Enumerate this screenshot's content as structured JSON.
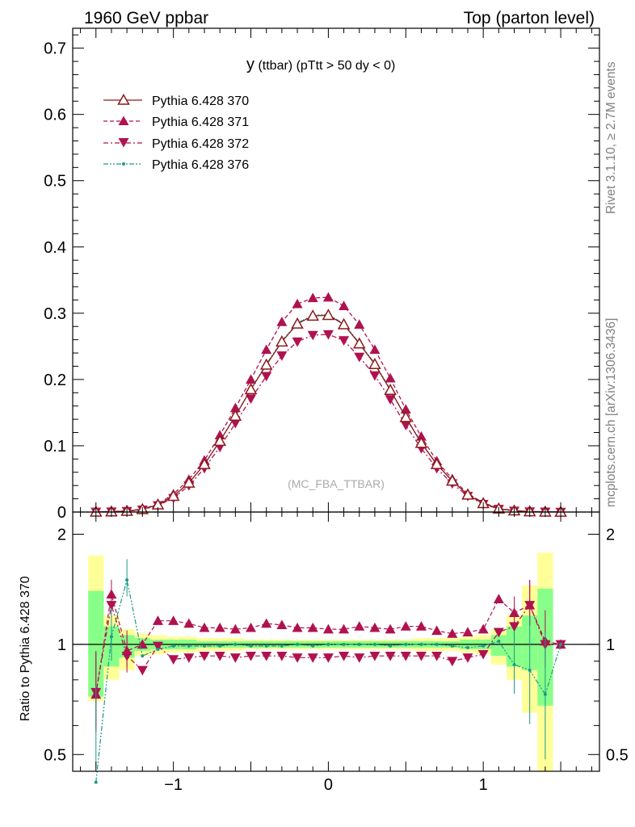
{
  "header": {
    "left": "1960 GeV ppbar",
    "right": "Top (parton level)"
  },
  "side_labels": {
    "rivet": "Rivet 3.1.10, ≥ 2.7M events",
    "mcplots": "mcplots.cern.ch [arXiv:1306.3436]"
  },
  "plot_title": {
    "main": "y",
    "sub": " (ttbar) (pTtt > 50 dy < 0)"
  },
  "watermark": "(MC_FBA_TTBAR)",
  "ratio_ylabel": "Ratio to Pythia 6.428 370",
  "colors": {
    "s370": "#8b1a1a",
    "s371": "#b0124f",
    "s372": "#b0124f",
    "s376": "#1e9a86",
    "band_yellow": "#ffff99",
    "band_green": "#88ff88"
  },
  "chart_data": {
    "type": "line",
    "x_ticks": [
      "−1",
      "0",
      "1"
    ],
    "main_y_ticks": [
      "0",
      "0.1",
      "0.2",
      "0.3",
      "0.4",
      "0.5",
      "0.6",
      "0.7"
    ],
    "ratio_y_ticks": [
      "0.5",
      "1",
      "2"
    ],
    "xlim": [
      -1.65,
      1.75
    ],
    "main_ylim": [
      0,
      0.73
    ],
    "ratio_ylim": [
      0.45,
      2.3
    ],
    "x": [
      -1.5,
      -1.4,
      -1.3,
      -1.2,
      -1.1,
      -1.0,
      -0.9,
      -0.8,
      -0.7,
      -0.6,
      -0.5,
      -0.4,
      -0.3,
      -0.2,
      -0.1,
      0.0,
      0.1,
      0.2,
      0.3,
      0.4,
      0.5,
      0.6,
      0.7,
      0.8,
      0.9,
      1.0,
      1.1,
      1.2,
      1.3,
      1.4,
      1.5
    ],
    "series": [
      {
        "name": "Pythia 6.428 370",
        "style": "solid",
        "marker": "open-triangle-up",
        "values": [
          0.0002,
          0.0006,
          0.0015,
          0.004,
          0.011,
          0.024,
          0.044,
          0.072,
          0.107,
          0.145,
          0.185,
          0.222,
          0.257,
          0.284,
          0.296,
          0.297,
          0.283,
          0.254,
          0.223,
          0.184,
          0.143,
          0.104,
          0.072,
          0.047,
          0.026,
          0.013,
          0.005,
          0.002,
          0.0007,
          0.0003,
          0.0001
        ],
        "ratio": [
          1.0,
          1.0,
          1.0,
          1.0,
          1.0,
          1.0,
          1.0,
          1.0,
          1.0,
          1.0,
          1.0,
          1.0,
          1.0,
          1.0,
          1.0,
          1.0,
          1.0,
          1.0,
          1.0,
          1.0,
          1.0,
          1.0,
          1.0,
          1.0,
          1.0,
          1.0,
          1.0,
          1.0,
          1.0,
          1.0,
          1.0
        ]
      },
      {
        "name": "Pythia 6.428 371",
        "style": "dashed",
        "marker": "filled-triangle-up",
        "values": [
          0.0002,
          0.0007,
          0.0018,
          0.0045,
          0.012,
          0.027,
          0.049,
          0.078,
          0.116,
          0.157,
          0.2,
          0.245,
          0.287,
          0.314,
          0.323,
          0.324,
          0.311,
          0.283,
          0.245,
          0.202,
          0.155,
          0.114,
          0.077,
          0.05,
          0.028,
          0.014,
          0.0055,
          0.0023,
          0.0008,
          0.0003,
          0.0001
        ],
        "ratio": [
          0.73,
          1.37,
          0.96,
          1.0,
          1.16,
          1.16,
          1.14,
          1.11,
          1.11,
          1.1,
          1.11,
          1.14,
          1.13,
          1.11,
          1.11,
          1.1,
          1.1,
          1.12,
          1.11,
          1.1,
          1.12,
          1.12,
          1.09,
          1.07,
          1.08,
          1.1,
          1.33,
          1.22,
          1.28,
          1.02,
          1.0
        ]
      },
      {
        "name": "Pythia 6.428 372",
        "style": "dashdot",
        "marker": "filled-triangle-down",
        "values": [
          0.0002,
          0.0005,
          0.0013,
          0.0034,
          0.01,
          0.021,
          0.04,
          0.066,
          0.098,
          0.134,
          0.171,
          0.205,
          0.236,
          0.257,
          0.267,
          0.268,
          0.259,
          0.234,
          0.206,
          0.17,
          0.131,
          0.096,
          0.066,
          0.043,
          0.024,
          0.012,
          0.0045,
          0.0018,
          0.0006,
          0.0003,
          0.0001
        ],
        "ratio": [
          0.74,
          1.28,
          0.93,
          0.85,
          0.99,
          0.91,
          0.92,
          0.93,
          0.93,
          0.92,
          0.93,
          0.93,
          0.93,
          0.92,
          0.92,
          0.92,
          0.93,
          0.92,
          0.93,
          0.93,
          0.93,
          0.93,
          0.93,
          0.9,
          0.92,
          0.94,
          1.08,
          1.12,
          1.28,
          1.0,
          1.0
        ]
      },
      {
        "name": "Pythia 6.428 376",
        "style": "dashdotdot",
        "marker": "small-dot",
        "values": [
          0.0002,
          0.0006,
          0.0015,
          0.004,
          0.011,
          0.024,
          0.044,
          0.072,
          0.107,
          0.145,
          0.186,
          0.223,
          0.258,
          0.285,
          0.297,
          0.298,
          0.284,
          0.255,
          0.224,
          0.185,
          0.143,
          0.105,
          0.072,
          0.047,
          0.026,
          0.013,
          0.005,
          0.002,
          0.0007,
          0.0003,
          0.0001
        ],
        "ratio": [
          0.42,
          1.05,
          1.5,
          0.93,
          0.97,
          0.99,
          0.99,
          0.99,
          0.99,
          1.0,
          0.99,
          0.99,
          0.99,
          1.0,
          0.99,
          1.0,
          1.0,
          1.0,
          1.0,
          0.99,
          1.0,
          1.0,
          1.0,
          0.99,
          0.98,
          0.99,
          1.02,
          0.88,
          0.85,
          0.73,
          1.0
        ]
      }
    ],
    "ratio_bands": {
      "yellow": [
        [
          1.75,
          0.7
        ],
        [
          1.2,
          0.8
        ],
        [
          1.1,
          0.85
        ],
        [
          1.07,
          0.93
        ],
        [
          1.06,
          0.94
        ],
        [
          1.05,
          0.95
        ],
        [
          1.05,
          0.95
        ],
        [
          1.04,
          0.96
        ],
        [
          1.04,
          0.96
        ],
        [
          1.04,
          0.96
        ],
        [
          1.03,
          0.97
        ],
        [
          1.03,
          0.97
        ],
        [
          1.03,
          0.97
        ],
        [
          1.03,
          0.97
        ],
        [
          1.03,
          0.97
        ],
        [
          1.03,
          0.97
        ],
        [
          1.03,
          0.97
        ],
        [
          1.03,
          0.97
        ],
        [
          1.03,
          0.97
        ],
        [
          1.03,
          0.97
        ],
        [
          1.03,
          0.97
        ],
        [
          1.04,
          0.96
        ],
        [
          1.04,
          0.96
        ],
        [
          1.04,
          0.96
        ],
        [
          1.05,
          0.95
        ],
        [
          1.06,
          0.94
        ],
        [
          1.1,
          0.88
        ],
        [
          1.2,
          0.8
        ],
        [
          1.45,
          0.65
        ],
        [
          1.78,
          0.42
        ],
        [
          1.0,
          1.0
        ]
      ],
      "green": [
        [
          1.4,
          0.72
        ],
        [
          1.12,
          0.87
        ],
        [
          1.06,
          0.92
        ],
        [
          1.04,
          0.96
        ],
        [
          1.03,
          0.97
        ],
        [
          1.03,
          0.97
        ],
        [
          1.03,
          0.97
        ],
        [
          1.02,
          0.98
        ],
        [
          1.02,
          0.98
        ],
        [
          1.02,
          0.98
        ],
        [
          1.02,
          0.98
        ],
        [
          1.02,
          0.98
        ],
        [
          1.02,
          0.98
        ],
        [
          1.02,
          0.98
        ],
        [
          1.02,
          0.98
        ],
        [
          1.02,
          0.98
        ],
        [
          1.02,
          0.98
        ],
        [
          1.02,
          0.98
        ],
        [
          1.02,
          0.98
        ],
        [
          1.02,
          0.98
        ],
        [
          1.02,
          0.98
        ],
        [
          1.02,
          0.98
        ],
        [
          1.02,
          0.98
        ],
        [
          1.02,
          0.98
        ],
        [
          1.03,
          0.97
        ],
        [
          1.03,
          0.97
        ],
        [
          1.06,
          0.93
        ],
        [
          1.12,
          0.87
        ],
        [
          1.2,
          0.85
        ],
        [
          1.42,
          0.68
        ],
        [
          1.0,
          1.0
        ]
      ]
    }
  }
}
